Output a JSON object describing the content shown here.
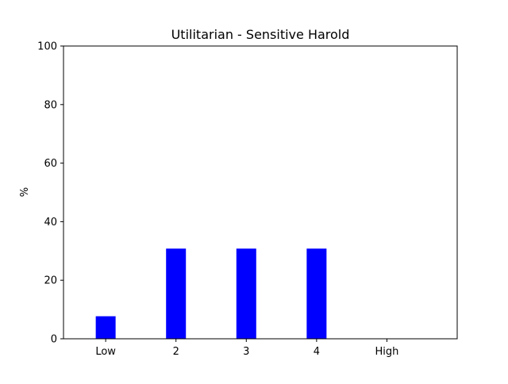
{
  "chart_data": {
    "type": "bar",
    "title": "Utilitarian - Sensitive Harold",
    "xlabel": "",
    "ylabel": "%",
    "categories": [
      "Low",
      "2",
      "3",
      "4",
      "High"
    ],
    "values": [
      7.7,
      30.8,
      30.8,
      30.8,
      0
    ],
    "ylim": [
      0,
      100
    ],
    "yticks": [
      0,
      20,
      40,
      60,
      80,
      100
    ],
    "grid": false,
    "bar_color": "#0000ff"
  }
}
